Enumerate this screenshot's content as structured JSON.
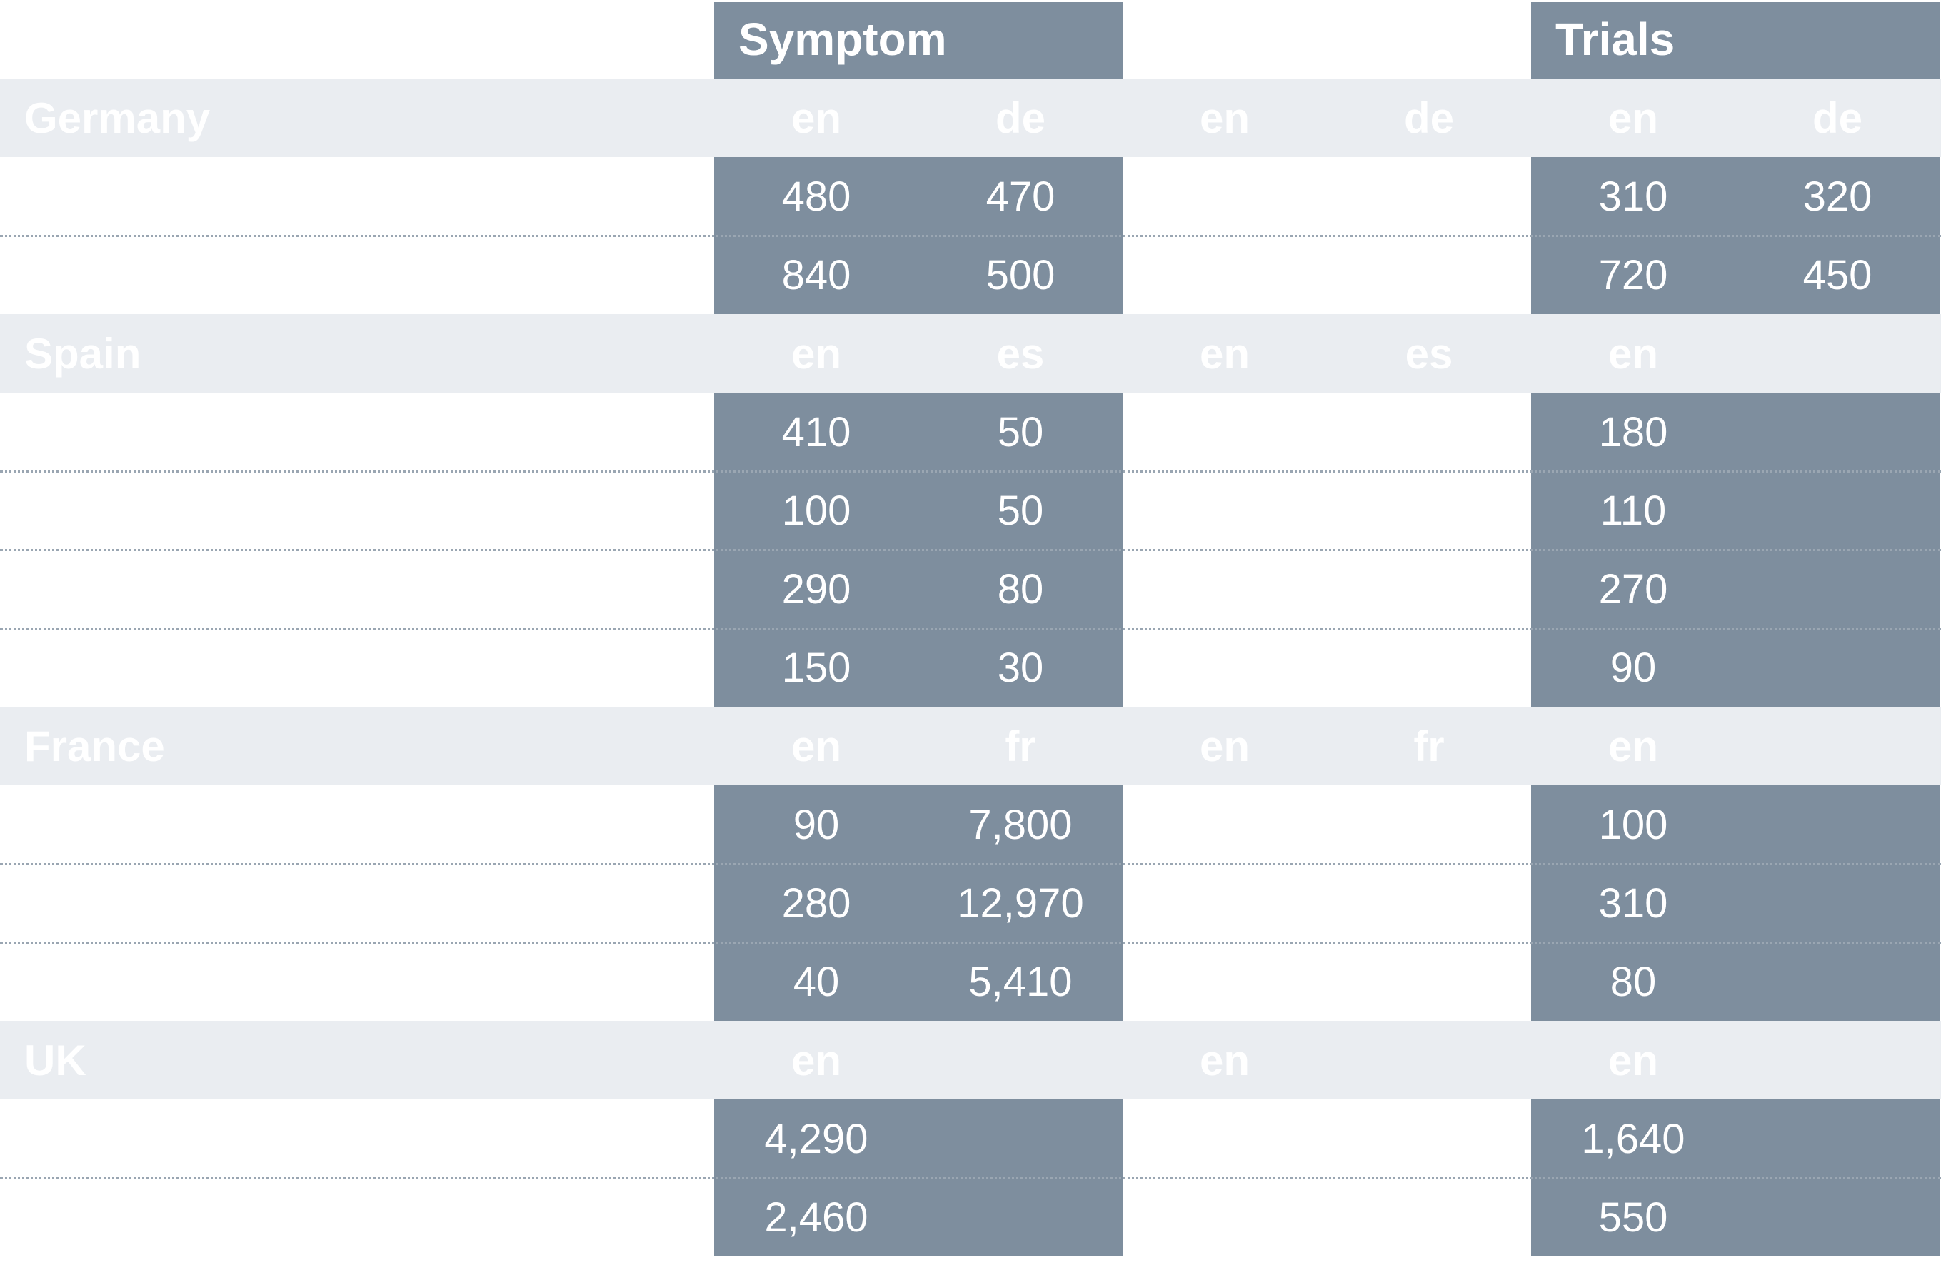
{
  "chart_data": {
    "type": "table",
    "column_groups": [
      {
        "name": "Symptom",
        "col_start": 0
      },
      {
        "name": "",
        "col_start": 2
      },
      {
        "name": "Trials",
        "col_start": 4
      }
    ],
    "sections": [
      {
        "country": "Germany",
        "langs": [
          "en",
          "de",
          "en",
          "de",
          "en",
          "de"
        ],
        "rows": [
          [
            "480",
            "470",
            "",
            "",
            "310",
            "320"
          ],
          [
            "840",
            "500",
            "",
            "",
            "720",
            "450"
          ]
        ]
      },
      {
        "country": "Spain",
        "langs": [
          "en",
          "es",
          "en",
          "es",
          "en",
          ""
        ],
        "rows": [
          [
            "410",
            "50",
            "",
            "",
            "180",
            ""
          ],
          [
            "100",
            "50",
            "",
            "",
            "110",
            ""
          ],
          [
            "290",
            "80",
            "",
            "",
            "270",
            ""
          ],
          [
            "150",
            "30",
            "",
            "",
            "90",
            ""
          ]
        ]
      },
      {
        "country": "France",
        "langs": [
          "en",
          "fr",
          "en",
          "fr",
          "en",
          ""
        ],
        "rows": [
          [
            "90",
            "7,800",
            "",
            "",
            "100",
            ""
          ],
          [
            "280",
            "12,970",
            "",
            "",
            "310",
            ""
          ],
          [
            "40",
            "5,410",
            "",
            "",
            "80",
            ""
          ]
        ]
      },
      {
        "country": "UK",
        "langs": [
          "en",
          "",
          "en",
          "",
          "en",
          ""
        ],
        "rows": [
          [
            "4,290",
            "",
            "",
            "",
            "1,640",
            ""
          ],
          [
            "2,460",
            "",
            "",
            "",
            "550",
            ""
          ]
        ]
      }
    ]
  },
  "colors": {
    "shaded_column": "#7e8e9e",
    "section_band": "#eaedf1",
    "text": "#ffffff",
    "row_separator": "#9aa6b2"
  }
}
